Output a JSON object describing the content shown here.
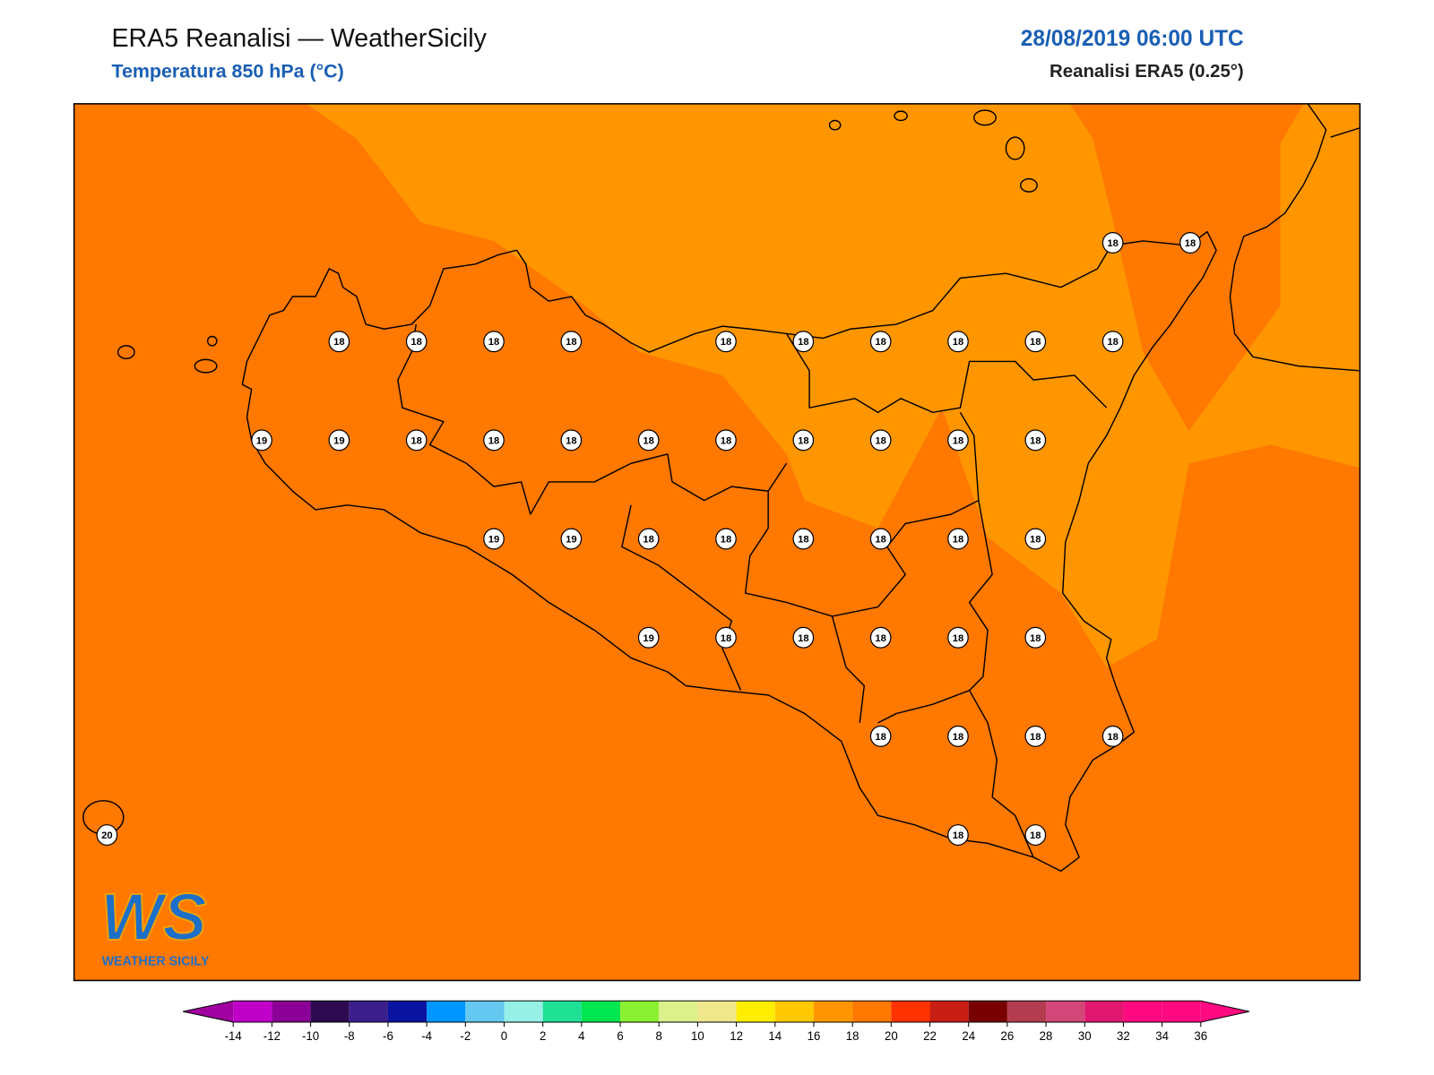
{
  "header": {
    "title": "ERA5 Reanalisi — WeatherSicily",
    "subtitle": "Temperatura 850 hPa (°C)",
    "datetime": "28/08/2019 06:00 UTC",
    "source": "Reanalisi ERA5 (0.25°)"
  },
  "map": {
    "frame_color": "#000000",
    "coast_color": "#000000"
  },
  "stations": {
    "rows": [
      [
        null,
        null,
        null,
        null,
        null,
        null,
        null,
        null,
        null,
        null,
        null,
        null,
        null,
        18,
        18
      ],
      [
        null,
        null,
        null,
        18,
        18,
        18,
        18,
        null,
        18,
        18,
        18,
        18,
        18,
        18,
        null
      ],
      [
        null,
        null,
        19,
        19,
        18,
        18,
        18,
        18,
        18,
        18,
        18,
        18,
        18,
        null,
        null
      ],
      [
        null,
        null,
        null,
        null,
        null,
        19,
        19,
        18,
        18,
        18,
        18,
        18,
        18,
        null,
        null
      ],
      [
        null,
        null,
        null,
        null,
        null,
        null,
        null,
        19,
        18,
        18,
        18,
        18,
        18,
        null,
        null
      ],
      [
        null,
        null,
        null,
        null,
        null,
        null,
        null,
        null,
        null,
        null,
        18,
        18,
        18,
        18,
        null
      ],
      [
        20,
        null,
        null,
        null,
        null,
        null,
        null,
        null,
        null,
        null,
        null,
        18,
        18,
        null,
        null
      ]
    ]
  },
  "colorbar": {
    "ticks": [
      -14,
      -12,
      -10,
      -8,
      -6,
      -4,
      -2,
      0,
      2,
      4,
      6,
      8,
      10,
      12,
      14,
      16,
      18,
      20,
      22,
      24,
      26,
      28,
      30,
      32,
      34,
      36
    ],
    "colors": [
      "#c000c8",
      "#8b0096",
      "#2d0a50",
      "#3a1e8c",
      "#0a14a0",
      "#0096ff",
      "#64c8f0",
      "#96f0e6",
      "#1ee196",
      "#00e650",
      "#8cf032",
      "#dcf08c",
      "#f0e68c",
      "#ffee00",
      "#ffc800",
      "#ff9600",
      "#ff7800",
      "#ff3200",
      "#c81e14",
      "#780000",
      "#b43c50",
      "#d24678",
      "#e01870",
      "#ff0a80",
      "#ff0a80"
    ],
    "under": "#a000a0",
    "over": "#ff0a80"
  },
  "logo": {
    "text": "WS",
    "caption": "WEATHER SICILY"
  }
}
